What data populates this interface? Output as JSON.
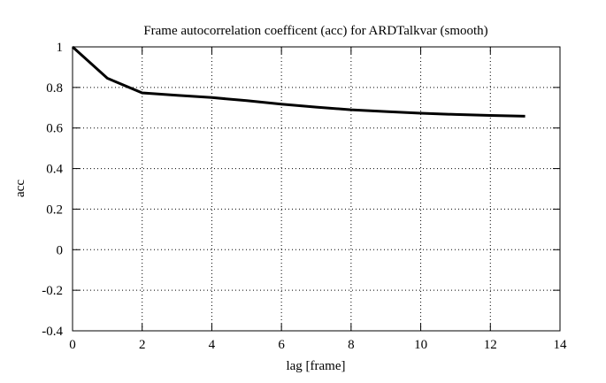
{
  "figure": {
    "background_color": "#ffffff",
    "text_color": "#000000"
  },
  "chart_data": {
    "type": "line",
    "title": "Frame autocorrelation coefficent (acc) for ARDTalkvar (smooth)",
    "xlabel": "lag [frame]",
    "ylabel": "acc",
    "xlim": [
      0,
      14
    ],
    "ylim": [
      -0.4,
      1
    ],
    "grid": true,
    "grid_style": "dotted",
    "grid_color": "#000000",
    "legend_position": "none",
    "line_color": "#000000",
    "line_width": 3,
    "border_color": "#000000",
    "xticks": [
      {
        "value": 0,
        "label": "0"
      },
      {
        "value": 2,
        "label": "2"
      },
      {
        "value": 4,
        "label": "4"
      },
      {
        "value": 6,
        "label": "6"
      },
      {
        "value": 8,
        "label": "8"
      },
      {
        "value": 10,
        "label": "10"
      },
      {
        "value": 12,
        "label": "12"
      },
      {
        "value": 14,
        "label": "14"
      }
    ],
    "yticks": [
      {
        "value": -0.4,
        "label": "-0.4"
      },
      {
        "value": -0.2,
        "label": "-0.2"
      },
      {
        "value": 0,
        "label": "0"
      },
      {
        "value": 0.2,
        "label": "0.2"
      },
      {
        "value": 0.4,
        "label": "0.4"
      },
      {
        "value": 0.6,
        "label": "0.6"
      },
      {
        "value": 0.8,
        "label": "0.8"
      },
      {
        "value": 1,
        "label": "1"
      }
    ],
    "series": [
      {
        "name": "acc",
        "x": [
          0,
          1,
          2,
          3,
          4,
          5,
          6,
          7,
          8,
          9,
          10,
          11,
          12,
          13
        ],
        "y": [
          1.0,
          0.845,
          0.773,
          0.761,
          0.75,
          0.735,
          0.718,
          0.703,
          0.69,
          0.681,
          0.673,
          0.667,
          0.662,
          0.658
        ]
      }
    ]
  }
}
